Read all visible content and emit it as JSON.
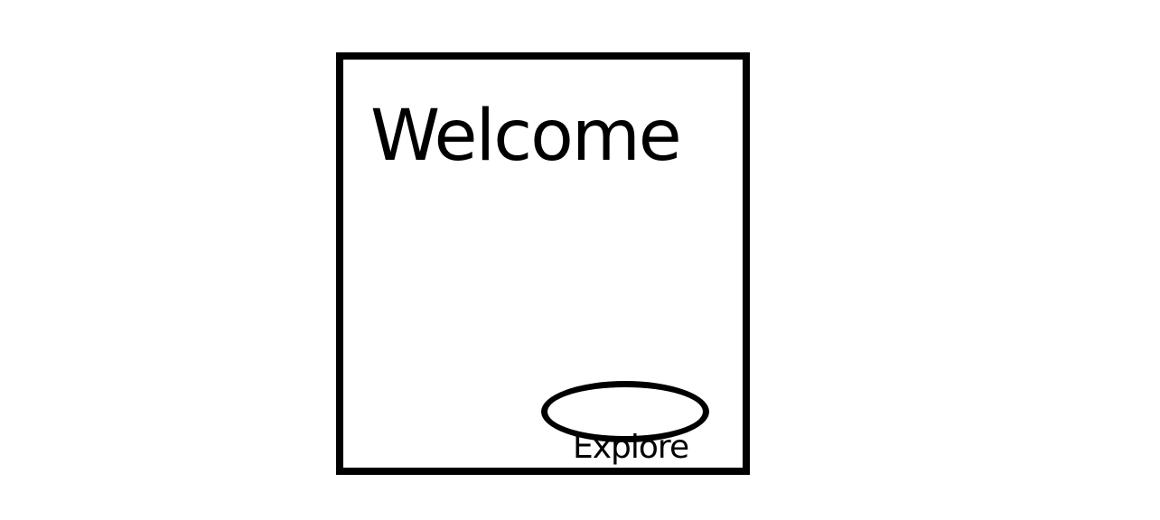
{
  "card": {
    "title": "Welcome"
  },
  "explore_button": {
    "label": "Explore"
  }
}
